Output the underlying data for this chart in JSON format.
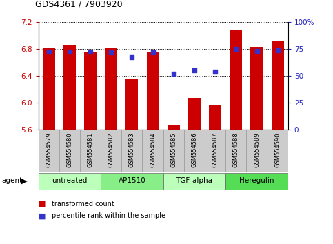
{
  "title": "GDS4361 / 7903920",
  "samples": [
    "GSM554579",
    "GSM554580",
    "GSM554581",
    "GSM554582",
    "GSM554583",
    "GSM554584",
    "GSM554585",
    "GSM554586",
    "GSM554587",
    "GSM554588",
    "GSM554589",
    "GSM554590"
  ],
  "bar_values": [
    6.81,
    6.85,
    6.76,
    6.82,
    6.35,
    6.75,
    5.67,
    6.07,
    5.97,
    7.08,
    6.83,
    6.92
  ],
  "blue_values": [
    6.76,
    6.76,
    6.76,
    6.75,
    6.67,
    6.75,
    6.43,
    6.48,
    6.46,
    6.8,
    6.77,
    6.78
  ],
  "y_min": 5.6,
  "y_max": 7.2,
  "y_ticks": [
    5.6,
    6.0,
    6.4,
    6.8,
    7.2
  ],
  "y_right_ticks": [
    0,
    25,
    50,
    75,
    100
  ],
  "y_right_labels": [
    "0",
    "25",
    "50",
    "75",
    "100%"
  ],
  "bar_color": "#cc0000",
  "blue_color": "#3333cc",
  "groups": [
    {
      "label": "untreated",
      "start": 0,
      "end": 3,
      "color": "#bbffbb"
    },
    {
      "label": "AP1510",
      "start": 3,
      "end": 6,
      "color": "#88ee88"
    },
    {
      "label": "TGF-alpha",
      "start": 6,
      "end": 9,
      "color": "#bbffbb"
    },
    {
      "label": "Heregulin",
      "start": 9,
      "end": 12,
      "color": "#55dd55"
    }
  ],
  "legend_items": [
    {
      "label": "transformed count",
      "color": "#cc0000"
    },
    {
      "label": "percentile rank within the sample",
      "color": "#3333cc"
    }
  ],
  "ylabel_left_color": "#cc0000",
  "ylabel_right_color": "#2222bb",
  "bar_width": 0.6,
  "sample_box_color": "#cccccc",
  "sample_box_edge": "#999999"
}
